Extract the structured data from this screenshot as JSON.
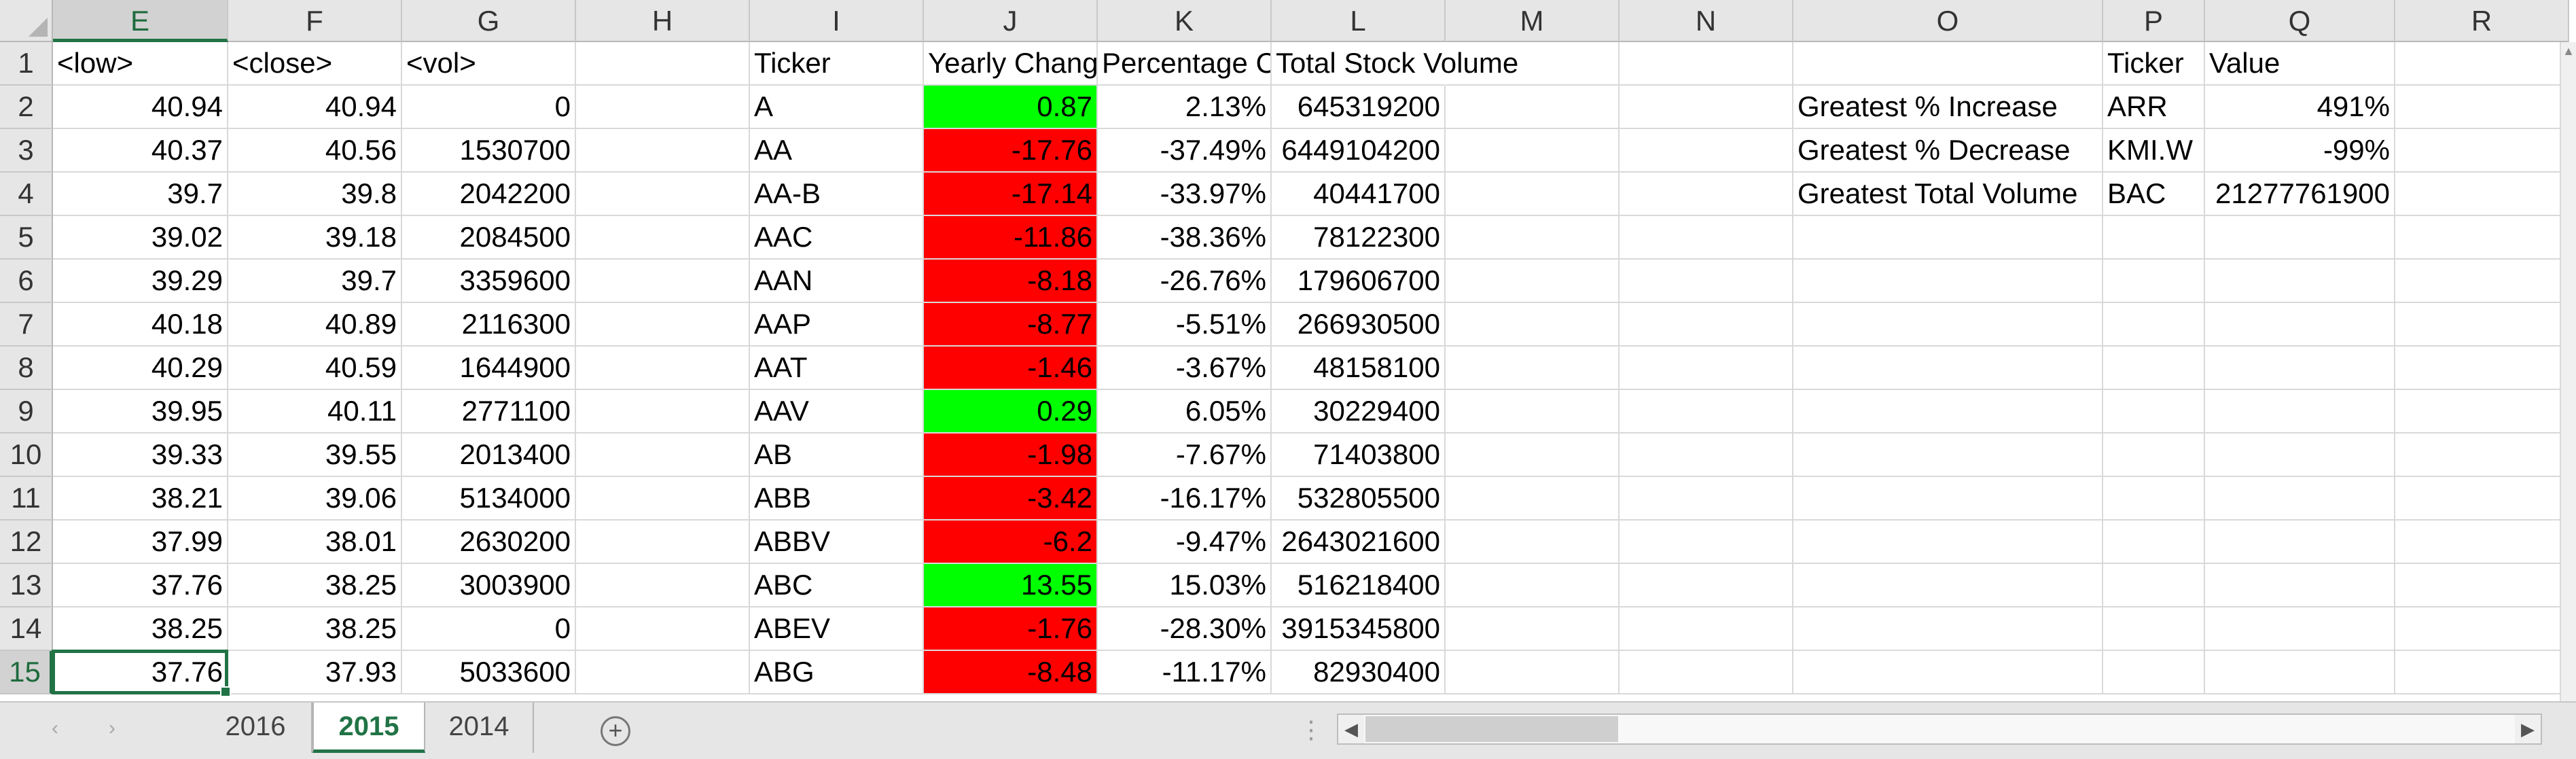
{
  "columns": [
    "E",
    "F",
    "G",
    "H",
    "I",
    "J",
    "K",
    "L",
    "M",
    "N",
    "O",
    "P",
    "Q",
    "R"
  ],
  "selected_column": "E",
  "row_numbers": [
    "1",
    "2",
    "3",
    "4",
    "5",
    "6",
    "7",
    "8",
    "9",
    "10",
    "11",
    "12",
    "13",
    "14",
    "15"
  ],
  "selected_row": "15",
  "header_row": {
    "E": "<low>",
    "F": "<close>",
    "G": "<vol>",
    "I": "Ticker",
    "J": "Yearly Change",
    "K": "Percentage Change",
    "L": "Total Stock Volume",
    "P": "Ticker",
    "Q": "Value"
  },
  "rows": [
    {
      "low": "40.94",
      "close": "40.94",
      "vol": "0",
      "ticker": "A",
      "yearly_change": "0.87",
      "pct_change": "2.13%",
      "total_volume": "645319200",
      "change_color": "green"
    },
    {
      "low": "40.37",
      "close": "40.56",
      "vol": "1530700",
      "ticker": "AA",
      "yearly_change": "-17.76",
      "pct_change": "-37.49%",
      "total_volume": "6449104200",
      "change_color": "red"
    },
    {
      "low": "39.7",
      "close": "39.8",
      "vol": "2042200",
      "ticker": "AA-B",
      "yearly_change": "-17.14",
      "pct_change": "-33.97%",
      "total_volume": "40441700",
      "change_color": "red"
    },
    {
      "low": "39.02",
      "close": "39.18",
      "vol": "2084500",
      "ticker": "AAC",
      "yearly_change": "-11.86",
      "pct_change": "-38.36%",
      "total_volume": "78122300",
      "change_color": "red"
    },
    {
      "low": "39.29",
      "close": "39.7",
      "vol": "3359600",
      "ticker": "AAN",
      "yearly_change": "-8.18",
      "pct_change": "-26.76%",
      "total_volume": "179606700",
      "change_color": "red"
    },
    {
      "low": "40.18",
      "close": "40.89",
      "vol": "2116300",
      "ticker": "AAP",
      "yearly_change": "-8.77",
      "pct_change": "-5.51%",
      "total_volume": "266930500",
      "change_color": "red"
    },
    {
      "low": "40.29",
      "close": "40.59",
      "vol": "1644900",
      "ticker": "AAT",
      "yearly_change": "-1.46",
      "pct_change": "-3.67%",
      "total_volume": "48158100",
      "change_color": "red"
    },
    {
      "low": "39.95",
      "close": "40.11",
      "vol": "2771100",
      "ticker": "AAV",
      "yearly_change": "0.29",
      "pct_change": "6.05%",
      "total_volume": "30229400",
      "change_color": "green"
    },
    {
      "low": "39.33",
      "close": "39.55",
      "vol": "2013400",
      "ticker": "AB",
      "yearly_change": "-1.98",
      "pct_change": "-7.67%",
      "total_volume": "71403800",
      "change_color": "red"
    },
    {
      "low": "38.21",
      "close": "39.06",
      "vol": "5134000",
      "ticker": "ABB",
      "yearly_change": "-3.42",
      "pct_change": "-16.17%",
      "total_volume": "532805500",
      "change_color": "red"
    },
    {
      "low": "37.99",
      "close": "38.01",
      "vol": "2630200",
      "ticker": "ABBV",
      "yearly_change": "-6.2",
      "pct_change": "-9.47%",
      "total_volume": "2643021600",
      "change_color": "red"
    },
    {
      "low": "37.76",
      "close": "38.25",
      "vol": "3003900",
      "ticker": "ABC",
      "yearly_change": "13.55",
      "pct_change": "15.03%",
      "total_volume": "516218400",
      "change_color": "green"
    },
    {
      "low": "38.25",
      "close": "38.25",
      "vol": "0",
      "ticker": "ABEV",
      "yearly_change": "-1.76",
      "pct_change": "-28.30%",
      "total_volume": "3915345800",
      "change_color": "red"
    },
    {
      "low": "37.76",
      "close": "37.93",
      "vol": "5033600",
      "ticker": "ABG",
      "yearly_change": "-8.48",
      "pct_change": "-11.17%",
      "total_volume": "82930400",
      "change_color": "red"
    }
  ],
  "summary": [
    {
      "label": "Greatest % Increase",
      "ticker": "ARR",
      "value": "491%"
    },
    {
      "label": "Greatest % Decrease",
      "ticker": "KMI.W",
      "value": "-99%"
    },
    {
      "label": "Greatest Total Volume",
      "ticker": "BAC",
      "value": "21277761900"
    }
  ],
  "sheet_tabs": [
    "2016",
    "2015",
    "2014"
  ],
  "active_tab": "2015",
  "colors": {
    "green": "#00ff00",
    "red": "#ff0000",
    "accent": "#217346"
  },
  "icons": {
    "add_sheet": "plus-circle-icon",
    "prev_sheet": "chevron-left-icon",
    "next_sheet": "chevron-right-icon"
  }
}
